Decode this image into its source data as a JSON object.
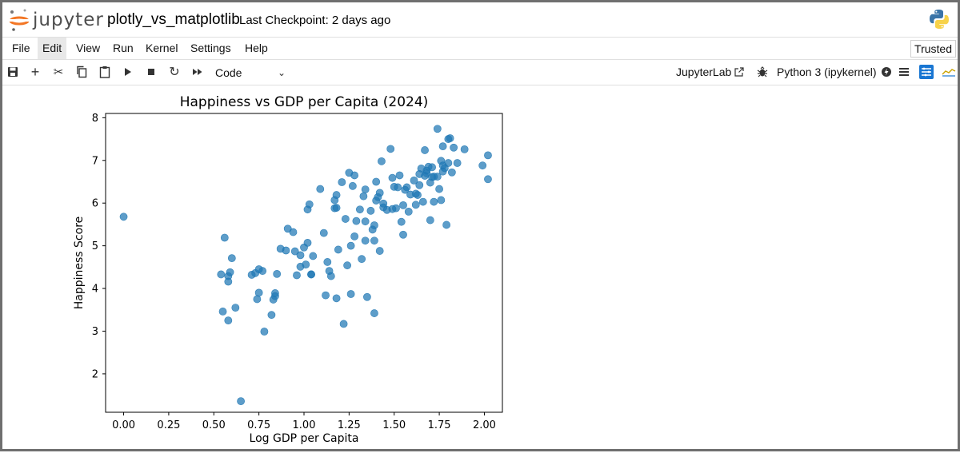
{
  "header": {
    "logo_text": "jupyter",
    "notebook_title": "plotly_vs_matplotlib",
    "checkpoint": "Last Checkpoint: 2 days ago"
  },
  "menu": {
    "items": [
      "File",
      "Edit",
      "View",
      "Run",
      "Kernel",
      "Settings",
      "Help"
    ],
    "trusted": "Trusted"
  },
  "toolbar": {
    "cell_type": "Code",
    "jupyterlab_label": "JupyterLab",
    "kernel": "Python 3 (ipykernel)"
  },
  "chart_data": {
    "type": "scatter",
    "title": "Happiness vs GDP per Capita (2024)",
    "xlabel": "Log GDP per Capita",
    "ylabel": "Happiness Score",
    "xlim": [
      -0.1,
      2.1
    ],
    "ylim": [
      1.1,
      8.1
    ],
    "xticks": [
      "0.00",
      "0.25",
      "0.50",
      "0.75",
      "1.00",
      "1.25",
      "1.50",
      "1.75",
      "2.00"
    ],
    "yticks": [
      "2",
      "3",
      "4",
      "5",
      "6",
      "7",
      "8"
    ],
    "color": "#1f77b4",
    "points": [
      [
        0.0,
        5.68
      ],
      [
        0.54,
        4.33
      ],
      [
        0.55,
        3.46
      ],
      [
        0.56,
        5.19
      ],
      [
        0.58,
        4.29
      ],
      [
        0.58,
        3.25
      ],
      [
        0.58,
        4.16
      ],
      [
        0.59,
        4.38
      ],
      [
        0.6,
        4.71
      ],
      [
        0.62,
        3.55
      ],
      [
        0.65,
        1.36
      ],
      [
        0.71,
        4.32
      ],
      [
        0.73,
        4.36
      ],
      [
        0.74,
        3.75
      ],
      [
        0.75,
        3.9
      ],
      [
        0.75,
        4.45
      ],
      [
        0.77,
        4.41
      ],
      [
        0.78,
        2.99
      ],
      [
        0.82,
        3.38
      ],
      [
        0.83,
        3.74
      ],
      [
        0.84,
        3.89
      ],
      [
        0.84,
        3.82
      ],
      [
        0.85,
        4.34
      ],
      [
        0.87,
        4.93
      ],
      [
        0.9,
        4.89
      ],
      [
        0.91,
        5.4
      ],
      [
        0.94,
        5.32
      ],
      [
        0.95,
        4.87
      ],
      [
        0.96,
        4.31
      ],
      [
        0.98,
        4.51
      ],
      [
        0.98,
        4.78
      ],
      [
        1.0,
        4.96
      ],
      [
        1.01,
        4.56
      ],
      [
        1.02,
        5.85
      ],
      [
        1.02,
        5.07
      ],
      [
        1.03,
        5.97
      ],
      [
        1.04,
        4.33
      ],
      [
        1.04,
        4.33
      ],
      [
        1.05,
        4.76
      ],
      [
        1.09,
        6.33
      ],
      [
        1.11,
        5.3
      ],
      [
        1.12,
        3.84
      ],
      [
        1.13,
        4.62
      ],
      [
        1.14,
        4.41
      ],
      [
        1.15,
        4.29
      ],
      [
        1.17,
        5.88
      ],
      [
        1.17,
        6.07
      ],
      [
        1.18,
        6.19
      ],
      [
        1.18,
        5.89
      ],
      [
        1.18,
        3.77
      ],
      [
        1.19,
        4.91
      ],
      [
        1.21,
        6.49
      ],
      [
        1.22,
        3.17
      ],
      [
        1.23,
        5.63
      ],
      [
        1.24,
        4.54
      ],
      [
        1.25,
        6.71
      ],
      [
        1.26,
        5.0
      ],
      [
        1.26,
        3.87
      ],
      [
        1.27,
        6.4
      ],
      [
        1.28,
        6.65
      ],
      [
        1.28,
        5.22
      ],
      [
        1.29,
        5.58
      ],
      [
        1.31,
        5.85
      ],
      [
        1.32,
        4.69
      ],
      [
        1.33,
        6.16
      ],
      [
        1.34,
        5.57
      ],
      [
        1.34,
        6.32
      ],
      [
        1.34,
        5.12
      ],
      [
        1.35,
        3.8
      ],
      [
        1.37,
        5.82
      ],
      [
        1.38,
        5.38
      ],
      [
        1.39,
        3.42
      ],
      [
        1.39,
        5.48
      ],
      [
        1.39,
        5.12
      ],
      [
        1.4,
        6.5
      ],
      [
        1.4,
        6.06
      ],
      [
        1.41,
        6.14
      ],
      [
        1.42,
        6.24
      ],
      [
        1.42,
        4.88
      ],
      [
        1.43,
        6.98
      ],
      [
        1.44,
        5.9
      ],
      [
        1.44,
        5.99
      ],
      [
        1.46,
        5.84
      ],
      [
        1.48,
        7.27
      ],
      [
        1.49,
        6.59
      ],
      [
        1.49,
        5.86
      ],
      [
        1.5,
        6.38
      ],
      [
        1.51,
        5.88
      ],
      [
        1.52,
        6.37
      ],
      [
        1.53,
        6.65
      ],
      [
        1.54,
        5.56
      ],
      [
        1.55,
        5.26
      ],
      [
        1.55,
        5.95
      ],
      [
        1.56,
        6.31
      ],
      [
        1.57,
        6.37
      ],
      [
        1.58,
        5.8
      ],
      [
        1.59,
        6.2
      ],
      [
        1.61,
        6.53
      ],
      [
        1.62,
        6.22
      ],
      [
        1.62,
        5.96
      ],
      [
        1.63,
        6.19
      ],
      [
        1.64,
        6.42
      ],
      [
        1.64,
        6.68
      ],
      [
        1.65,
        6.81
      ],
      [
        1.66,
        6.03
      ],
      [
        1.67,
        6.64
      ],
      [
        1.67,
        7.24
      ],
      [
        1.68,
        6.7
      ],
      [
        1.68,
        6.76
      ],
      [
        1.69,
        6.85
      ],
      [
        1.7,
        5.6
      ],
      [
        1.7,
        6.48
      ],
      [
        1.71,
        6.84
      ],
      [
        1.71,
        6.61
      ],
      [
        1.72,
        6.62
      ],
      [
        1.72,
        6.03
      ],
      [
        1.74,
        7.74
      ],
      [
        1.74,
        6.62
      ],
      [
        1.75,
        6.33
      ],
      [
        1.76,
        6.99
      ],
      [
        1.76,
        6.07
      ],
      [
        1.77,
        6.88
      ],
      [
        1.77,
        7.33
      ],
      [
        1.77,
        6.74
      ],
      [
        1.78,
        6.82
      ],
      [
        1.79,
        5.49
      ],
      [
        1.8,
        7.5
      ],
      [
        1.8,
        6.94
      ],
      [
        1.81,
        7.52
      ],
      [
        1.82,
        6.72
      ],
      [
        1.83,
        7.3
      ],
      [
        1.85,
        6.94
      ],
      [
        1.89,
        7.26
      ],
      [
        1.99,
        6.88
      ],
      [
        2.02,
        7.12
      ],
      [
        2.02,
        6.56
      ]
    ]
  }
}
